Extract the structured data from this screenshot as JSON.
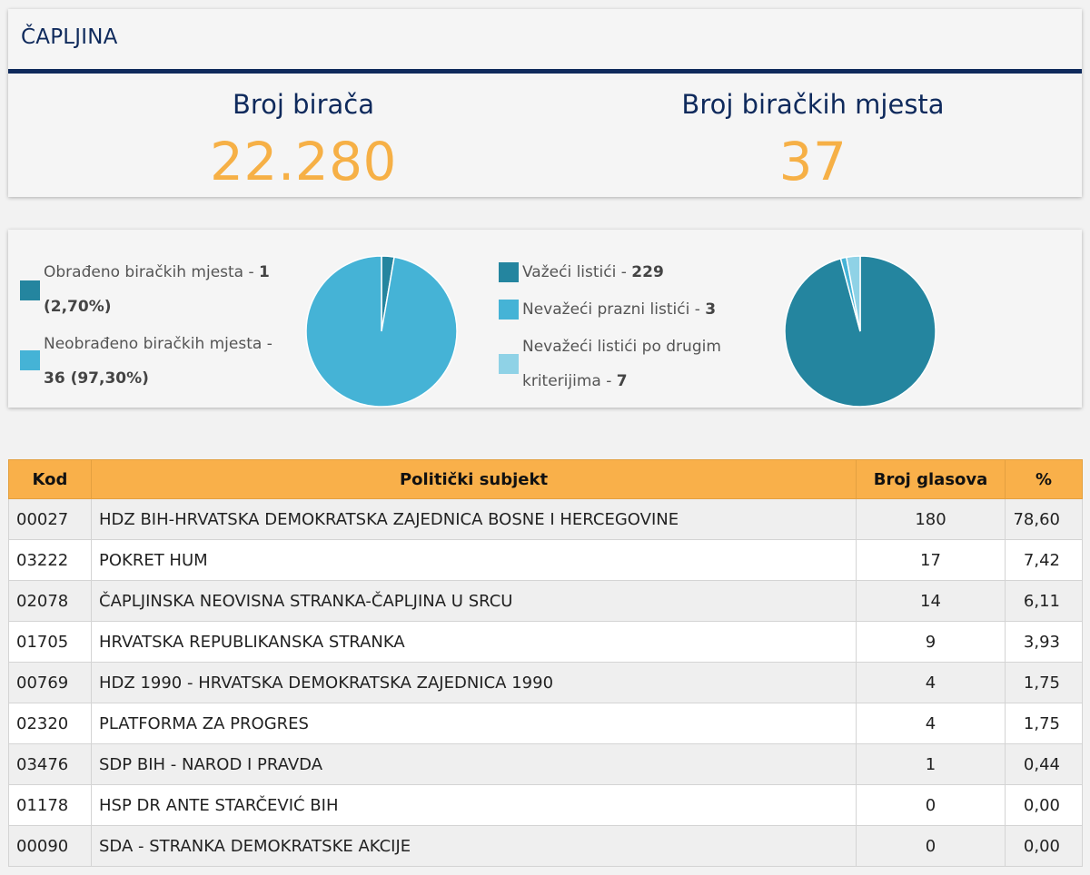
{
  "header": {
    "title": "ČAPLJINA",
    "voters_label": "Broj birača",
    "voters_value": "22.280",
    "stations_label": "Broj biračkih mjesta",
    "stations_value": "37"
  },
  "pies": {
    "stations": {
      "items": [
        {
          "label": "Obrađeno biračkih mjesta - ",
          "value_text": "1",
          "pct_text": "(2,70%)",
          "color": "#24859f"
        },
        {
          "label": "Neobrađeno biračkih mjesta - ",
          "value_text": "36 (97,30%)",
          "color": "#45b3d6"
        }
      ]
    },
    "ballots": {
      "items": [
        {
          "label": "Važeći listići - ",
          "value_text": "229",
          "color": "#24859f"
        },
        {
          "label": "Nevažeći prazni listići - ",
          "value_text": "3",
          "color": "#45b3d6"
        },
        {
          "label_line1": "Nevažeći listići po drugim",
          "label_line2": "kriterijima - ",
          "value_text": "7",
          "color": "#8fd2e6"
        }
      ]
    }
  },
  "chart_data": [
    {
      "type": "pie",
      "categories": [
        "Obrađeno biračkih mjesta",
        "Neobrađeno biračkih mjesta"
      ],
      "values": [
        1,
        36
      ],
      "colors": [
        "#24859f",
        "#45b3d6"
      ]
    },
    {
      "type": "pie",
      "categories": [
        "Važeći listići",
        "Nevažeći prazni listići",
        "Nevažeći listići po drugim kriterijima"
      ],
      "values": [
        229,
        3,
        7
      ],
      "colors": [
        "#24859f",
        "#45b3d6",
        "#8fd2e6"
      ]
    }
  ],
  "table": {
    "headers": [
      "Kod",
      "Politički subjekt",
      "Broj glasova",
      "%"
    ],
    "rows": [
      [
        "00027",
        "HDZ BIH-HRVATSKA DEMOKRATSKA ZAJEDNICA BOSNE I HERCEGOVINE",
        "180",
        "78,60"
      ],
      [
        "03222",
        "POKRET HUM",
        "17",
        "7,42"
      ],
      [
        "02078",
        "ČAPLJINSKA NEOVISNA STRANKA-ČAPLJINA U SRCU",
        "14",
        "6,11"
      ],
      [
        "01705",
        "HRVATSKA REPUBLIKANSKA STRANKA",
        "9",
        "3,93"
      ],
      [
        "00769",
        "HDZ 1990 - HRVATSKA DEMOKRATSKA ZAJEDNICA 1990",
        "4",
        "1,75"
      ],
      [
        "02320",
        "PLATFORMA ZA PROGRES",
        "4",
        "1,75"
      ],
      [
        "03476",
        "SDP BIH - NAROD I PRAVDA",
        "1",
        "0,44"
      ],
      [
        "01178",
        "HSP DR ANTE STARČEVIĆ BIH",
        "0",
        "0,00"
      ],
      [
        "00090",
        "SDA - STRANKA DEMOKRATSKE AKCIJE",
        "0",
        "0,00"
      ]
    ]
  }
}
